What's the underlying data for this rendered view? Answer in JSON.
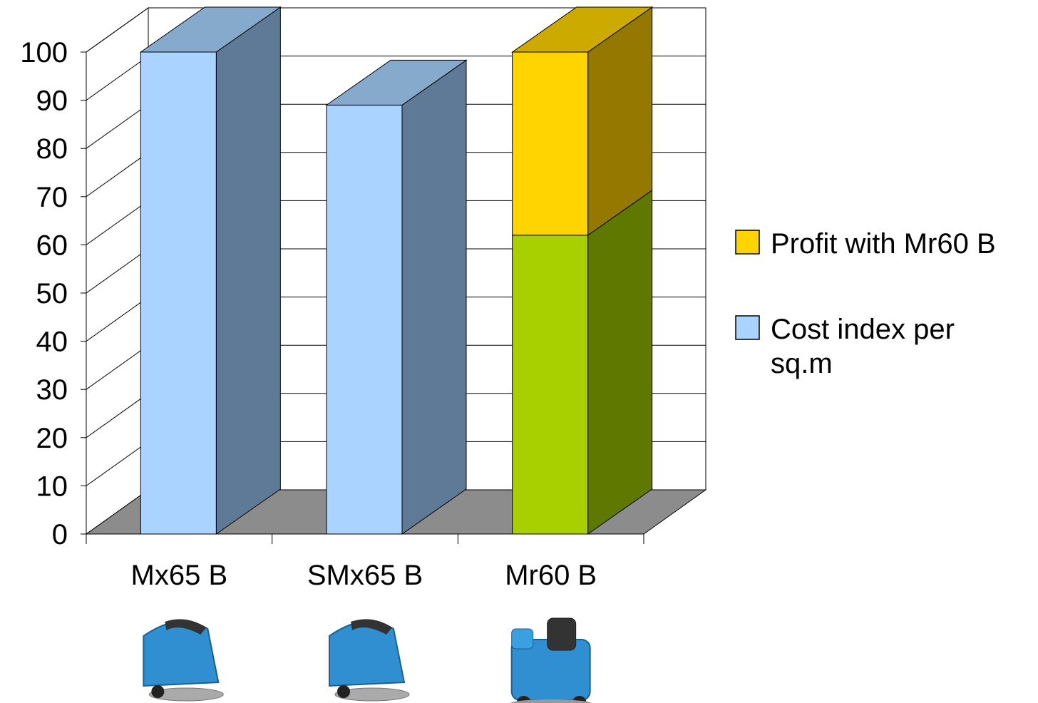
{
  "chart_data": {
    "type": "bar",
    "stacked": true,
    "three_d": true,
    "categories": [
      "Mx65 B",
      "SMx65 B",
      "Mr60 B"
    ],
    "series": [
      {
        "name": "Cost index per sq.m",
        "values": [
          100,
          89,
          62
        ],
        "colors": [
          "#aad4ff",
          "#aad4ff",
          "#a8d000"
        ],
        "side_colors": [
          "#5f7a96",
          "#5f7a96",
          "#5f7800"
        ],
        "top_color": "#86aacc"
      },
      {
        "name": "Profit with Mr60 B",
        "values": [
          0,
          0,
          38
        ],
        "colors": [
          "#ffd400",
          "#ffd400",
          "#ffd400"
        ],
        "side_colors": [
          "#947800",
          "#947800",
          "#947800"
        ],
        "top_color": "#ccaa00"
      }
    ],
    "ylim": [
      0,
      100
    ],
    "yticks": [
      "0",
      "10",
      "20",
      "30",
      "40",
      "50",
      "60",
      "70",
      "80",
      "90",
      "100"
    ],
    "grid": true,
    "legend_position": "right",
    "legend": [
      {
        "label": "Profit with Mr60 B",
        "color": "#ffd400"
      },
      {
        "label_lines": [
          "Cost index per",
          "sq.m"
        ],
        "color": "#aad4ff"
      }
    ],
    "images_below_bars": [
      "scrubber-dryer-icon",
      "scrubber-dryer-icon",
      "ride-on-scrubber-icon"
    ]
  }
}
